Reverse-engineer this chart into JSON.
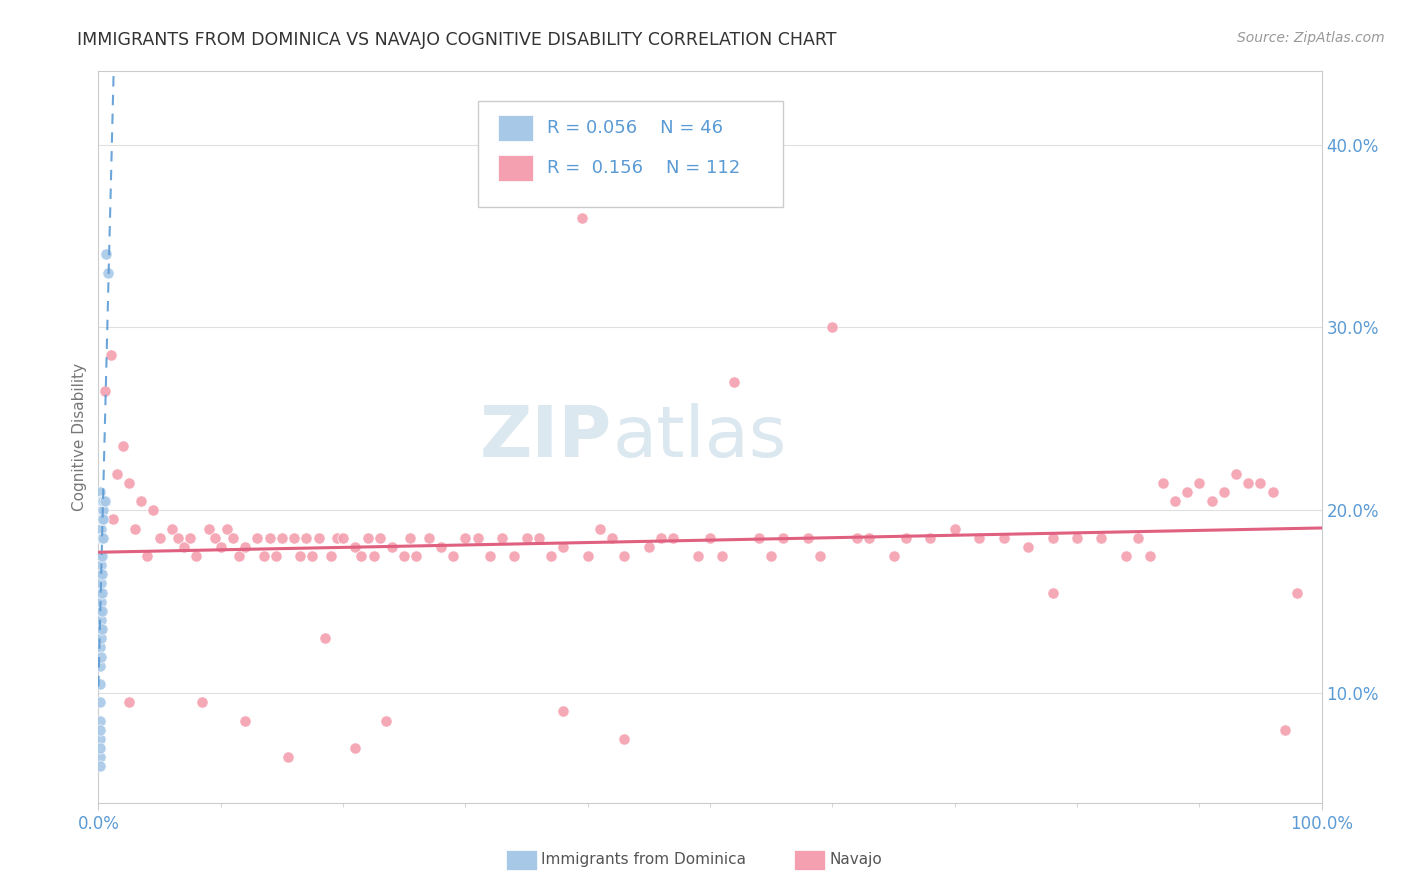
{
  "title": "IMMIGRANTS FROM DOMINICA VS NAVAJO COGNITIVE DISABILITY CORRELATION CHART",
  "source": "Source: ZipAtlas.com",
  "ylabel": "Cognitive Disability",
  "yticks": [
    0.1,
    0.2,
    0.3,
    0.4
  ],
  "ytick_labels": [
    "10.0%",
    "20.0%",
    "30.0%",
    "40.0%"
  ],
  "xlim": [
    0.0,
    1.0
  ],
  "ylim": [
    0.04,
    0.44
  ],
  "R_blue": 0.056,
  "N_blue": 46,
  "R_pink": 0.156,
  "N_pink": 112,
  "background_color": "#ffffff",
  "grid_color": "#e0e0e0",
  "title_color": "#333333",
  "axis_tick_color": "#5b9bd5",
  "watermark_color": "#dce8f0",
  "blue_scatter_color": "#a8c8e8",
  "blue_line_color": "#5b9bd5",
  "pink_scatter_color": "#f4a0b0",
  "pink_line_color": "#e06080",
  "legend_edge_color": "#cccccc",
  "legend_text_color": "#5b9bd5",
  "ylabel_color": "#777777",
  "source_color": "#999999",
  "blue_x": [
    0.001,
    0.001,
    0.001,
    0.001,
    0.001,
    0.001,
    0.001,
    0.001,
    0.001,
    0.001,
    0.001,
    0.001,
    0.001,
    0.001,
    0.001,
    0.001,
    0.001,
    0.001,
    0.001,
    0.001,
    0.002,
    0.002,
    0.002,
    0.002,
    0.002,
    0.002,
    0.002,
    0.002,
    0.002,
    0.002,
    0.003,
    0.003,
    0.003,
    0.003,
    0.003,
    0.003,
    0.003,
    0.003,
    0.003,
    0.004,
    0.004,
    0.004,
    0.004,
    0.005,
    0.006,
    0.008
  ],
  "blue_y": [
    0.195,
    0.2,
    0.205,
    0.21,
    0.185,
    0.175,
    0.165,
    0.155,
    0.145,
    0.135,
    0.125,
    0.115,
    0.105,
    0.095,
    0.085,
    0.075,
    0.065,
    0.06,
    0.07,
    0.08,
    0.19,
    0.195,
    0.2,
    0.205,
    0.17,
    0.16,
    0.15,
    0.14,
    0.13,
    0.12,
    0.2,
    0.195,
    0.205,
    0.185,
    0.175,
    0.165,
    0.155,
    0.145,
    0.135,
    0.2,
    0.205,
    0.195,
    0.185,
    0.205,
    0.34,
    0.33
  ],
  "pink_x": [
    0.005,
    0.01,
    0.012,
    0.015,
    0.02,
    0.025,
    0.03,
    0.035,
    0.04,
    0.045,
    0.05,
    0.06,
    0.065,
    0.07,
    0.075,
    0.08,
    0.09,
    0.095,
    0.1,
    0.105,
    0.11,
    0.115,
    0.12,
    0.13,
    0.135,
    0.14,
    0.145,
    0.15,
    0.16,
    0.165,
    0.17,
    0.175,
    0.18,
    0.19,
    0.195,
    0.2,
    0.21,
    0.215,
    0.22,
    0.225,
    0.23,
    0.24,
    0.25,
    0.255,
    0.26,
    0.27,
    0.28,
    0.29,
    0.3,
    0.31,
    0.32,
    0.33,
    0.34,
    0.35,
    0.36,
    0.37,
    0.38,
    0.395,
    0.4,
    0.41,
    0.42,
    0.43,
    0.45,
    0.46,
    0.47,
    0.49,
    0.5,
    0.51,
    0.52,
    0.54,
    0.55,
    0.56,
    0.58,
    0.59,
    0.6,
    0.62,
    0.63,
    0.65,
    0.66,
    0.68,
    0.7,
    0.72,
    0.74,
    0.76,
    0.78,
    0.8,
    0.82,
    0.84,
    0.85,
    0.86,
    0.87,
    0.88,
    0.89,
    0.9,
    0.91,
    0.92,
    0.93,
    0.94,
    0.95,
    0.96,
    0.97,
    0.98,
    0.025,
    0.085,
    0.12,
    0.155,
    0.185,
    0.21,
    0.235,
    0.38,
    0.43,
    0.78
  ],
  "pink_y": [
    0.265,
    0.285,
    0.195,
    0.22,
    0.235,
    0.215,
    0.19,
    0.205,
    0.175,
    0.2,
    0.185,
    0.19,
    0.185,
    0.18,
    0.185,
    0.175,
    0.19,
    0.185,
    0.18,
    0.19,
    0.185,
    0.175,
    0.18,
    0.185,
    0.175,
    0.185,
    0.175,
    0.185,
    0.185,
    0.175,
    0.185,
    0.175,
    0.185,
    0.175,
    0.185,
    0.185,
    0.18,
    0.175,
    0.185,
    0.175,
    0.185,
    0.18,
    0.175,
    0.185,
    0.175,
    0.185,
    0.18,
    0.175,
    0.185,
    0.185,
    0.175,
    0.185,
    0.175,
    0.185,
    0.185,
    0.175,
    0.18,
    0.36,
    0.175,
    0.19,
    0.185,
    0.175,
    0.18,
    0.185,
    0.185,
    0.175,
    0.185,
    0.175,
    0.27,
    0.185,
    0.175,
    0.185,
    0.185,
    0.175,
    0.3,
    0.185,
    0.185,
    0.175,
    0.185,
    0.185,
    0.19,
    0.185,
    0.185,
    0.18,
    0.185,
    0.185,
    0.185,
    0.175,
    0.185,
    0.175,
    0.215,
    0.205,
    0.21,
    0.215,
    0.205,
    0.21,
    0.22,
    0.215,
    0.215,
    0.21,
    0.08,
    0.155,
    0.095,
    0.095,
    0.085,
    0.065,
    0.13,
    0.07,
    0.085,
    0.09,
    0.075,
    0.155
  ]
}
